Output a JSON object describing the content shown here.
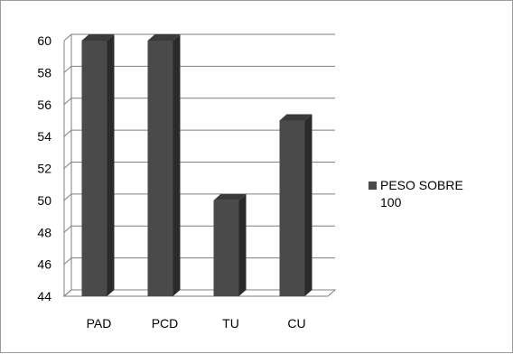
{
  "chart_data": {
    "type": "bar",
    "style": "3d-column",
    "categories": [
      "PAD",
      "PCD",
      "TU",
      "CU"
    ],
    "series": [
      {
        "name": "PESO SOBRE 100",
        "values": [
          60,
          60,
          50,
          55
        ]
      }
    ],
    "ylim": [
      44,
      60
    ],
    "yticks": [
      44,
      46,
      48,
      50,
      52,
      54,
      56,
      58,
      60
    ],
    "yticks_labels": [
      "44",
      "46",
      "48",
      "50",
      "52",
      "54",
      "56",
      "58",
      "60"
    ],
    "grid": true,
    "legend_position": "right",
    "legend_lines": [
      "PESO SOBRE",
      "100"
    ],
    "colors": {
      "bar_front": "#4a4a4a",
      "bar_side": "#2a2a2a",
      "bar_top": "#3a3a3a",
      "grid": "#7f7f7f",
      "axis": "#7f7f7f"
    }
  }
}
